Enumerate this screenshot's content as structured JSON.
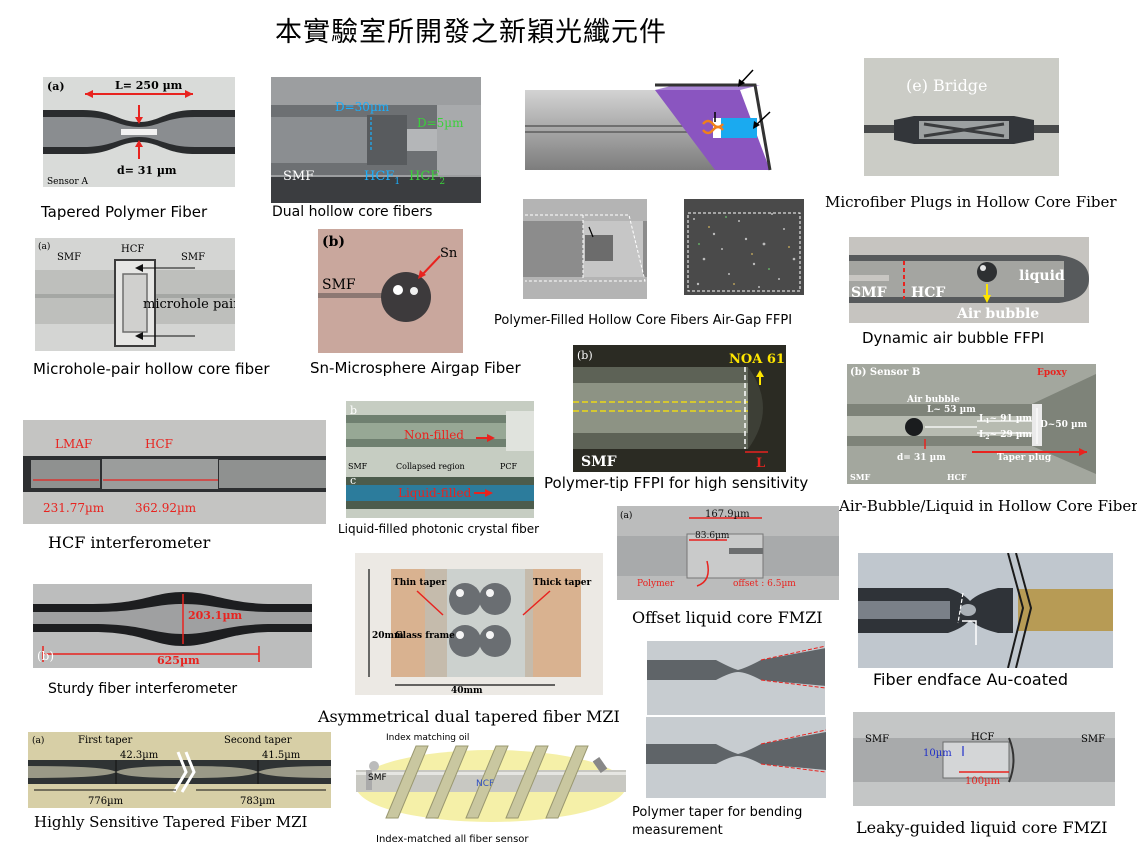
{
  "page": {
    "title": "本實驗室所開發之新穎光纖元件"
  },
  "panels": [
    {
      "id": "tapered-polymer",
      "caption": "Tapered Polymer Fiber",
      "labels": [
        "(a)",
        "L= 250 µm",
        "d= 31 µm",
        "Sensor A"
      ]
    },
    {
      "id": "dual-hollow",
      "caption": "Dual hollow core fibers",
      "labels": [
        "D=30µm",
        "D=5µm",
        "SMF",
        "HCF",
        "1",
        "HCF",
        "2"
      ]
    },
    {
      "id": "microfiber-plugs",
      "caption": "Microfiber Plugs in Hollow Core Fiber",
      "labels": [
        "(e) Bridge"
      ]
    },
    {
      "id": "microhole-pair",
      "caption": "Microhole-pair hollow core fiber",
      "labels": [
        "(a)",
        "SMF",
        "HCF",
        "SMF",
        "microhole pair"
      ]
    },
    {
      "id": "sn-microsphere",
      "caption": "Sn-Microsphere Airgap Fiber",
      "labels": [
        "(b)",
        "Sn",
        "SMF"
      ]
    },
    {
      "id": "polymer-filled",
      "caption": "Polymer-Filled  Hollow  Core Fibers  Air-Gap  FFPI",
      "labels": []
    },
    {
      "id": "dynamic-bubble",
      "caption": "Dynamic  air bubble FFPI",
      "labels": [
        "SMF",
        "HCF",
        "liquid",
        "Air bubble"
      ]
    },
    {
      "id": "polymer-tip",
      "caption": "Polymer-tip FFPI for high sensitivity",
      "labels": [
        "(b)",
        "NOA 61",
        "SMF",
        "L"
      ]
    },
    {
      "id": "air-bubble-liquid",
      "caption": "Air-Bubble/Liquid in Hollow Core Fiber",
      "labels": [
        "(b) Sensor B",
        "Epoxy",
        "Air bubble",
        "L~ 53 µm",
        "L",
        "1",
        "~ 91 µm",
        "L",
        "2",
        "~ 29 µm",
        "D~50 µm",
        "d= 31 µm",
        "SMF",
        "HCF",
        "Taper plug"
      ]
    },
    {
      "id": "hcf-interferometer",
      "caption": "HCF interferometer",
      "labels": [
        "LMAF",
        "HCF",
        "231.77µm",
        "362.92µm"
      ]
    },
    {
      "id": "liquid-pcf",
      "caption": "Liquid-filled  photonic  crystal  fiber",
      "labels": [
        "b",
        "Non-filled",
        "SMF",
        "Collapsed region",
        "PCF",
        "c",
        "Liquid-filled"
      ]
    },
    {
      "id": "offset-liquid",
      "caption": "Offset liquid core FMZI",
      "labels": [
        "(a)",
        "167.9µm",
        "83.6µm",
        "Polymer",
        "offset : 6.5µm"
      ]
    },
    {
      "id": "sturdy-fiber",
      "caption": "Sturdy fiber interferometer",
      "labels": [
        "203.1µm",
        "(b)",
        "625µm"
      ]
    },
    {
      "id": "asym-dual-taper",
      "caption": "Asymmetrical  dual tapered fiber MZI",
      "labels": [
        "Thin taper",
        "Thick taper",
        "20mm",
        "Glass frame",
        "40mm"
      ]
    },
    {
      "id": "fiber-endface",
      "caption": "Fiber endface Au-coated",
      "labels": []
    },
    {
      "id": "polymer-taper",
      "caption": "Polymer taper for bending measurement",
      "caption_lines": [
        "Polymer taper for bending",
        "measurement"
      ],
      "labels": []
    },
    {
      "id": "tapered-mzi",
      "caption": "Highly  Sensitive Tapered Fiber MZI",
      "labels": [
        "(a)",
        "First taper",
        "Second taper",
        "42.3µm",
        "41.5µm",
        "776µm",
        "783µm"
      ]
    },
    {
      "id": "index-matched",
      "caption": "Index-matched all fiber sensor",
      "labels": [
        "Index matching oil",
        "SMF",
        "NCF"
      ]
    },
    {
      "id": "leaky-guided",
      "caption": "Leaky-guided liquid core FMZI",
      "labels": [
        "SMF",
        "HCF",
        "SMF",
        "10µm",
        "100µm"
      ]
    }
  ],
  "colors": {
    "red_label": "#e8231f",
    "cyan_label": "#1ab0ff",
    "yellow_label": "#ffe600",
    "green_label": "#3ad13a",
    "purple_cap": "#7b3fb5"
  }
}
